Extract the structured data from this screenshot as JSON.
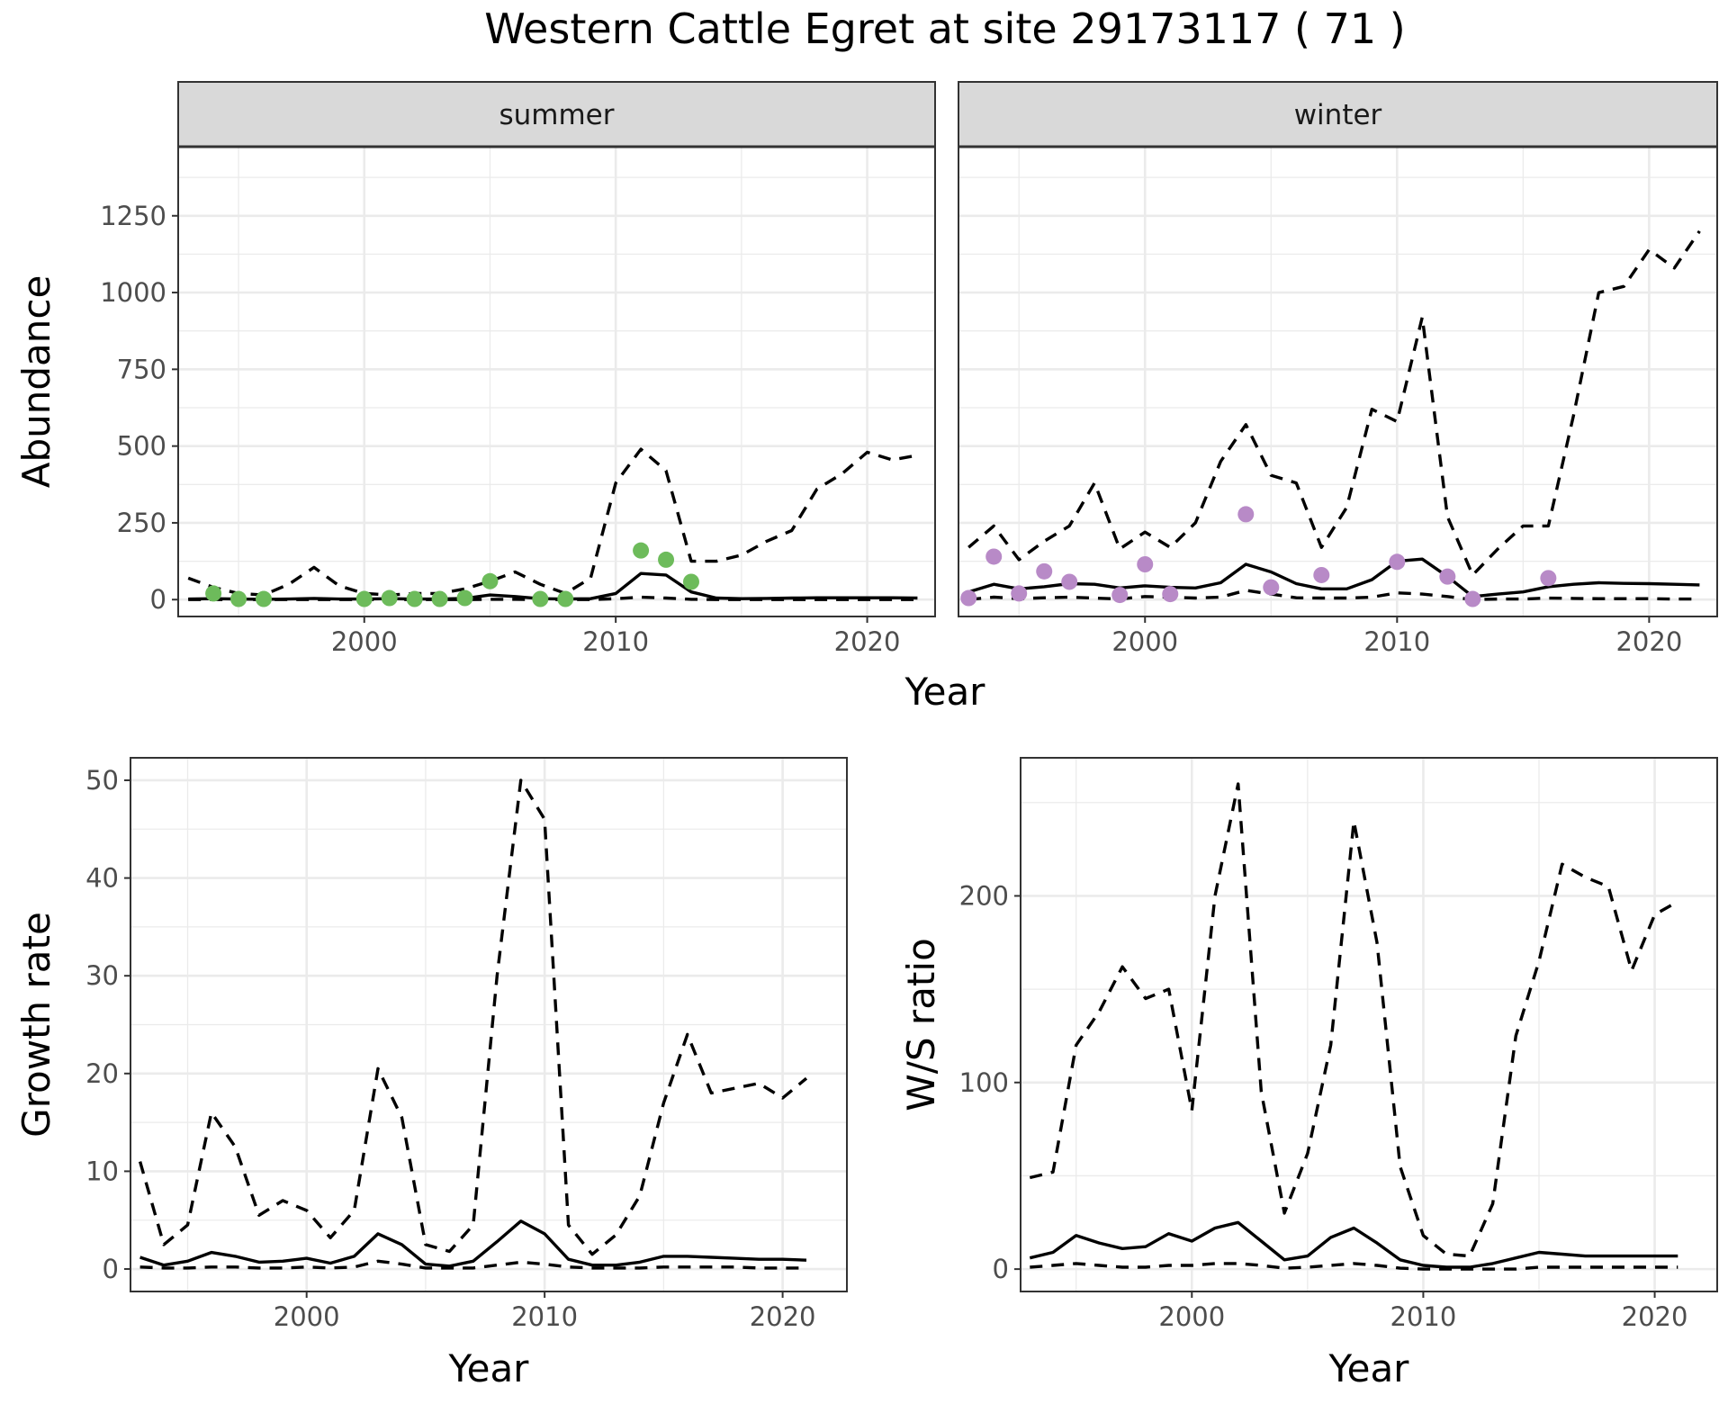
{
  "figure_title": "Western Cattle Egret at site 29173117 ( 71 )",
  "colors": {
    "summer_points": "#6dbb5b",
    "winter_points": "#b88ac7",
    "lines": "#000000"
  },
  "chart_data": [
    {
      "id": "abundance-summer",
      "type": "line",
      "facet": "summer",
      "xlabel": "",
      "ylabel": "Abundance",
      "xlim": [
        1992.6,
        2022.7
      ],
      "ylim": [
        -55,
        1475
      ],
      "x_ticks": [
        2000,
        2010,
        2020
      ],
      "y_ticks": [
        0,
        250,
        500,
        750,
        1000,
        1250
      ],
      "series": [
        {
          "style": "solid",
          "x": [
            1993,
            1994,
            1995,
            1996,
            1997,
            1998,
            1999,
            2000,
            2001,
            2002,
            2003,
            2004,
            2005,
            2006,
            2007,
            2008,
            2009,
            2010,
            2011,
            2012,
            2013,
            2014,
            2015,
            2016,
            2017,
            2018,
            2019,
            2020,
            2021,
            2022
          ],
          "values": [
            2,
            3,
            2,
            1,
            2,
            4,
            2,
            2,
            3,
            2,
            2,
            4,
            15,
            10,
            3,
            2,
            3,
            20,
            85,
            80,
            25,
            5,
            3,
            4,
            5,
            6,
            6,
            6,
            6,
            5
          ]
        },
        {
          "style": "dashed",
          "x": [
            1993,
            1994,
            1995,
            1996,
            1997,
            1998,
            1999,
            2000,
            2001,
            2002,
            2003,
            2004,
            2005,
            2006,
            2007,
            2008,
            2009,
            2010,
            2011,
            2012,
            2013,
            2014,
            2015,
            2016,
            2017,
            2018,
            2019,
            2020,
            2021,
            2022
          ],
          "values": [
            70,
            40,
            20,
            15,
            50,
            105,
            45,
            20,
            15,
            20,
            20,
            35,
            60,
            90,
            50,
            20,
            70,
            380,
            490,
            420,
            125,
            125,
            145,
            190,
            225,
            360,
            410,
            480,
            455,
            470
          ]
        },
        {
          "style": "dashed",
          "x": [
            1993,
            1994,
            1995,
            1996,
            1997,
            1998,
            1999,
            2000,
            2001,
            2002,
            2003,
            2004,
            2005,
            2006,
            2007,
            2008,
            2009,
            2010,
            2011,
            2012,
            2013,
            2014,
            2015,
            2016,
            2017,
            2018,
            2019,
            2020,
            2021,
            2022
          ],
          "values": [
            0,
            0,
            0,
            0,
            0,
            0,
            0,
            0,
            0,
            0,
            0,
            0,
            1,
            1,
            0,
            0,
            0,
            3,
            8,
            5,
            1,
            0,
            0,
            0,
            0,
            0,
            0,
            0,
            0,
            0
          ]
        },
        {
          "style": "points",
          "color": "#6dbb5b",
          "x": [
            1994,
            1995,
            1996,
            2000,
            2001,
            2002,
            2003,
            2004,
            2005,
            2007,
            2008,
            2011,
            2012,
            2013
          ],
          "values": [
            20,
            2,
            2,
            2,
            5,
            2,
            2,
            5,
            60,
            2,
            2,
            160,
            130,
            58
          ]
        }
      ]
    },
    {
      "id": "abundance-winter",
      "type": "line",
      "facet": "winter",
      "xlabel": "",
      "ylabel": "",
      "xlim": [
        1992.6,
        2022.7
      ],
      "ylim": [
        -55,
        1475
      ],
      "x_ticks": [
        2000,
        2010,
        2020
      ],
      "y_ticks": [
        0,
        250,
        500,
        750,
        1000,
        1250
      ],
      "series": [
        {
          "style": "solid",
          "x": [
            1993,
            1994,
            1995,
            1996,
            1997,
            1998,
            1999,
            2000,
            2001,
            2002,
            2003,
            2004,
            2005,
            2006,
            2007,
            2008,
            2009,
            2010,
            2011,
            2012,
            2013,
            2014,
            2015,
            2016,
            2017,
            2018,
            2019,
            2020,
            2021,
            2022
          ],
          "values": [
            25,
            50,
            35,
            42,
            52,
            50,
            38,
            45,
            40,
            38,
            55,
            115,
            90,
            52,
            35,
            35,
            65,
            125,
            132,
            75,
            10,
            18,
            25,
            42,
            50,
            55,
            53,
            52,
            50,
            48
          ]
        },
        {
          "style": "dashed",
          "x": [
            1993,
            1994,
            1995,
            1996,
            1997,
            1998,
            1999,
            2000,
            2001,
            2002,
            2003,
            2004,
            2005,
            2006,
            2007,
            2008,
            2009,
            2010,
            2011,
            2012,
            2013,
            2014,
            2015,
            2016,
            2017,
            2018,
            2019,
            2020,
            2021,
            2022
          ],
          "values": [
            170,
            240,
            130,
            190,
            240,
            380,
            165,
            220,
            170,
            250,
            450,
            570,
            405,
            380,
            170,
            300,
            620,
            580,
            920,
            270,
            80,
            165,
            240,
            240,
            600,
            1000,
            1020,
            1140,
            1080,
            1200
          ]
        },
        {
          "style": "dashed",
          "x": [
            1993,
            1994,
            1995,
            1996,
            1997,
            1998,
            1999,
            2000,
            2001,
            2002,
            2003,
            2004,
            2005,
            2006,
            2007,
            2008,
            2009,
            2010,
            2011,
            2012,
            2013,
            2014,
            2015,
            2016,
            2017,
            2018,
            2019,
            2020,
            2021,
            2022
          ],
          "values": [
            0,
            8,
            3,
            6,
            8,
            5,
            2,
            10,
            8,
            5,
            8,
            30,
            18,
            6,
            5,
            5,
            8,
            22,
            18,
            10,
            0,
            2,
            2,
            5,
            4,
            3,
            3,
            3,
            2,
            2
          ]
        },
        {
          "style": "points",
          "color": "#b88ac7",
          "x": [
            1993,
            1994,
            1995,
            1996,
            1997,
            1999,
            2000,
            2001,
            2004,
            2005,
            2007,
            2010,
            2012,
            2013,
            2016
          ],
          "values": [
            5,
            140,
            20,
            92,
            58,
            15,
            115,
            18,
            278,
            40,
            80,
            123,
            75,
            2,
            70
          ]
        }
      ]
    },
    {
      "id": "growth-rate",
      "type": "line",
      "xlabel": "Year",
      "ylabel": "Growth rate",
      "xlim": [
        1992.6,
        2022.7
      ],
      "ylim": [
        -2.3,
        52.3
      ],
      "x_ticks": [
        2000,
        2010,
        2020
      ],
      "y_ticks": [
        0,
        10,
        20,
        30,
        40,
        50
      ],
      "series": [
        {
          "style": "solid",
          "x": [
            1993,
            1994,
            1995,
            1996,
            1997,
            1998,
            1999,
            2000,
            2001,
            2002,
            2003,
            2004,
            2005,
            2006,
            2007,
            2008,
            2009,
            2010,
            2011,
            2012,
            2013,
            2014,
            2015,
            2016,
            2017,
            2018,
            2019,
            2020,
            2021
          ],
          "values": [
            1.2,
            0.4,
            0.8,
            1.7,
            1.3,
            0.7,
            0.8,
            1.1,
            0.6,
            1.3,
            3.6,
            2.5,
            0.5,
            0.3,
            0.8,
            2.8,
            4.9,
            3.6,
            1.0,
            0.4,
            0.4,
            0.7,
            1.3,
            1.3,
            1.2,
            1.1,
            1.0,
            1.0,
            0.9
          ]
        },
        {
          "style": "dashed",
          "x": [
            1993,
            1994,
            1995,
            1996,
            1997,
            1998,
            1999,
            2000,
            2001,
            2002,
            2003,
            2004,
            2005,
            2006,
            2007,
            2008,
            2009,
            2010,
            2011,
            2012,
            2013,
            2014,
            2015,
            2016,
            2017,
            2018,
            2019,
            2020,
            2021
          ],
          "values": [
            11,
            2.5,
            4.5,
            16,
            12.5,
            5.5,
            7,
            6,
            3.2,
            6,
            20.5,
            15.5,
            2.5,
            1.8,
            4.5,
            30,
            50,
            46,
            4.5,
            1.5,
            3.5,
            7.5,
            17,
            24,
            18,
            18.5,
            19,
            17.5,
            19.5
          ]
        },
        {
          "style": "dashed",
          "x": [
            1993,
            1994,
            1995,
            1996,
            1997,
            1998,
            1999,
            2000,
            2001,
            2002,
            2003,
            2004,
            2005,
            2006,
            2007,
            2008,
            2009,
            2010,
            2011,
            2012,
            2013,
            2014,
            2015,
            2016,
            2017,
            2018,
            2019,
            2020,
            2021
          ],
          "values": [
            0.2,
            0.1,
            0.1,
            0.2,
            0.2,
            0.1,
            0.1,
            0.2,
            0.1,
            0.2,
            0.8,
            0.5,
            0.1,
            0.1,
            0.1,
            0.4,
            0.7,
            0.5,
            0.2,
            0.1,
            0.1,
            0.1,
            0.2,
            0.2,
            0.2,
            0.2,
            0.1,
            0.1,
            0.1
          ]
        }
      ]
    },
    {
      "id": "ws-ratio",
      "type": "line",
      "xlabel": "Year",
      "ylabel": "W/S ratio",
      "xlim": [
        1992.6,
        2022.7
      ],
      "ylim": [
        -12,
        274
      ],
      "x_ticks": [
        2000,
        2010,
        2020
      ],
      "y_ticks": [
        0,
        100,
        200
      ],
      "series": [
        {
          "style": "solid",
          "x": [
            1993,
            1994,
            1995,
            1996,
            1997,
            1998,
            1999,
            2000,
            2001,
            2002,
            2003,
            2004,
            2005,
            2006,
            2007,
            2008,
            2009,
            2010,
            2011,
            2012,
            2013,
            2014,
            2015,
            2016,
            2017,
            2018,
            2019,
            2020,
            2021
          ],
          "values": [
            6,
            9,
            18,
            14,
            11,
            12,
            19,
            15,
            22,
            25,
            15,
            5,
            7,
            17,
            22,
            14,
            5,
            2,
            1,
            1,
            3,
            6,
            9,
            8,
            7,
            7,
            7,
            7,
            7
          ]
        },
        {
          "style": "dashed",
          "x": [
            1993,
            1994,
            1995,
            1996,
            1997,
            1998,
            1999,
            2000,
            2001,
            2002,
            2003,
            2004,
            2005,
            2006,
            2007,
            2008,
            2009,
            2010,
            2011,
            2012,
            2013,
            2014,
            2015,
            2016,
            2017,
            2018,
            2019,
            2020,
            2021
          ],
          "values": [
            49,
            52,
            120,
            138,
            162,
            145,
            150,
            85,
            200,
            260,
            95,
            30,
            62,
            120,
            240,
            175,
            55,
            18,
            8,
            7,
            35,
            125,
            165,
            217,
            210,
            205,
            160,
            190,
            197
          ]
        },
        {
          "style": "dashed",
          "x": [
            1993,
            1994,
            1995,
            1996,
            1997,
            1998,
            1999,
            2000,
            2001,
            2002,
            2003,
            2004,
            2005,
            2006,
            2007,
            2008,
            2009,
            2010,
            2011,
            2012,
            2013,
            2014,
            2015,
            2016,
            2017,
            2018,
            2019,
            2020,
            2021
          ],
          "values": [
            1,
            2,
            3,
            2,
            1,
            1,
            2,
            2,
            3,
            3,
            2,
            0.5,
            1,
            2,
            3,
            2,
            0.5,
            0,
            0,
            0,
            0,
            0,
            1,
            1,
            1,
            1,
            1,
            1,
            1
          ]
        }
      ]
    }
  ],
  "shared_xlabel_top": "Year"
}
